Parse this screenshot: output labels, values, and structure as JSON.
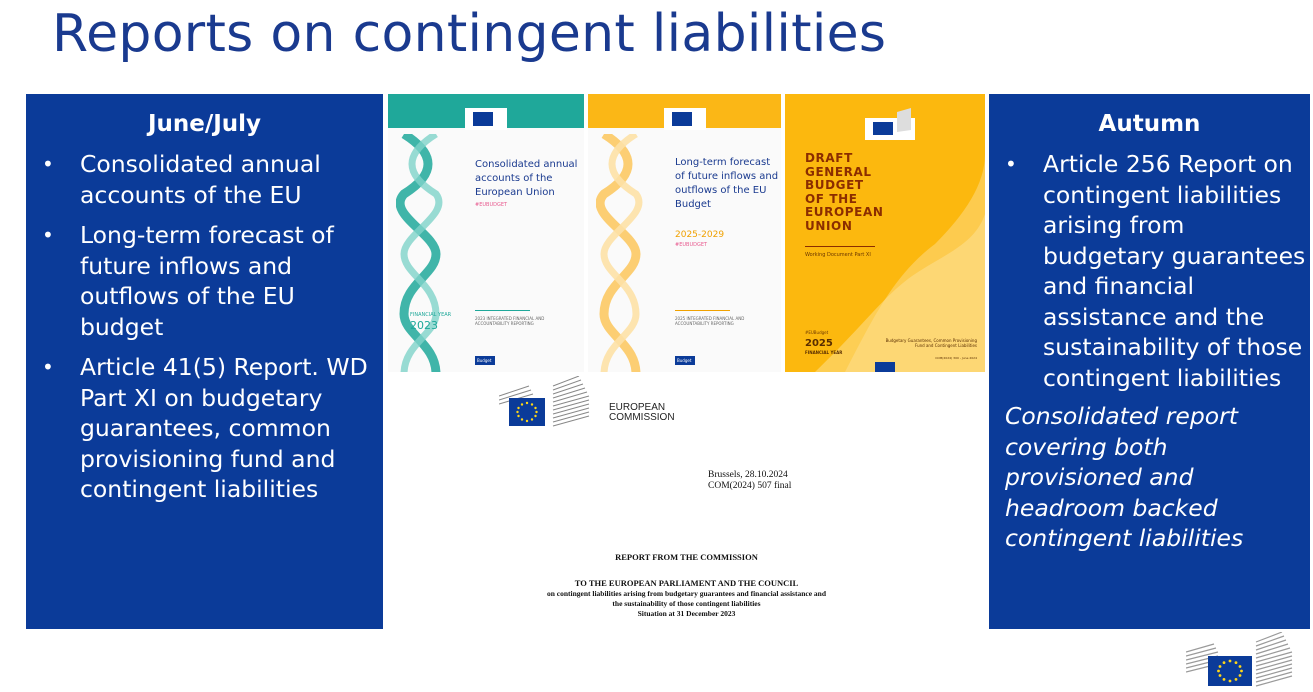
{
  "title": "Reports on contingent liabilities",
  "left_panel": {
    "heading": "June/July",
    "items": [
      "Consolidated annual accounts of the EU",
      "Long-term forecast of future inflows and outflows of the EU budget",
      "Article 41(5) Report. WD Part XI on budgetary guarantees, common provisioning fund and contingent liabilities"
    ]
  },
  "right_panel": {
    "heading": "Autumn",
    "items": [
      "Article 256 Report on contingent liabilities arising from budgetary guarantees and financial assistance and the sustainability of those contingent liabilities"
    ],
    "note": "Consolidated report covering both provisioned and headroom backed contingent liabilities"
  },
  "covers": {
    "c1": {
      "title": "Consolidated annual accounts of the European Union",
      "tag": "#EUBUDGET",
      "year_label": "FINANCIAL YEAR",
      "year": "2023",
      "bottom": "2023 INTEGRATED FINANCIAL AND ACCOUNTABILITY REPORTING",
      "badge": "Budget"
    },
    "c2": {
      "title": "Long-term forecast of future inflows and outflows of the EU Budget",
      "years": "2025-2029",
      "tag": "#EUBUDGET",
      "bottom": "2025 INTEGRATED FINANCIAL AND ACCOUNTABILITY REPORTING",
      "badge": "Budget"
    },
    "c3": {
      "title": "DRAFT GENERAL BUDGET OF THE EUROPEAN UNION",
      "subtitle": "Working Document Part XI",
      "tag": "#EUBudget",
      "year": "2025",
      "fy": "FINANCIAL YEAR",
      "right_text": "Budgetary Guarantees, Common Provisioning Fund and Contingent Liabilities",
      "right_small": "COM(2024) 300 - June 2024"
    }
  },
  "doc": {
    "org_line1": "EUROPEAN",
    "org_line2": "COMMISSION",
    "brussels": "Brussels, 28.10.2024",
    "com": "COM(2024) 507 final",
    "report": "REPORT FROM THE COMMISSION",
    "to": "TO THE EUROPEAN PARLIAMENT AND THE COUNCIL",
    "line1": "on contingent liabilities arising from budgetary guarantees and financial assistance and",
    "line2": "the sustainability of those contingent liabilities",
    "line3": "Situation at 31 December 2023"
  },
  "colors": {
    "brand_blue": "#0b3b99",
    "title_blue": "#1a3a8f",
    "teal": "#1fa89a",
    "amber": "#fcb80e"
  }
}
